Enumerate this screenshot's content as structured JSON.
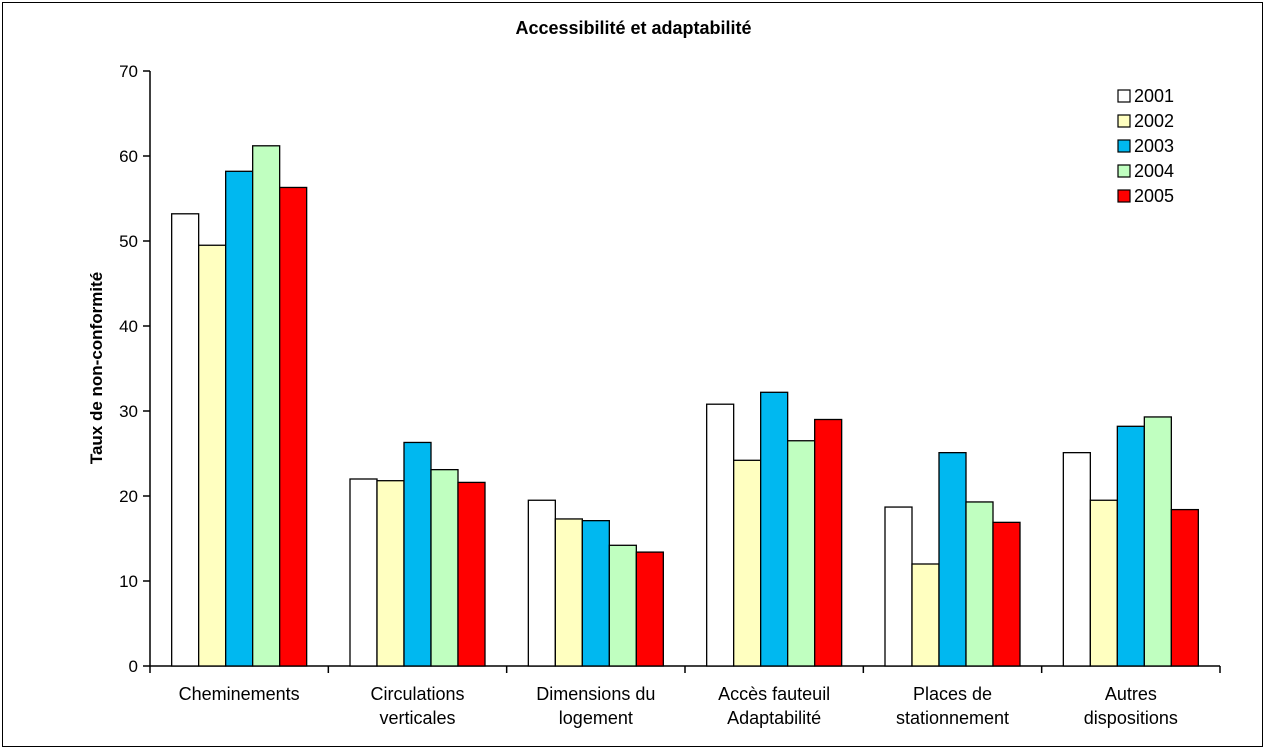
{
  "chart_data": {
    "type": "bar",
    "title": "Accessibilité et adaptabilité",
    "xlabel": "",
    "ylabel": "Taux de non-conformité",
    "ylim": [
      0,
      70
    ],
    "yticks": [
      "0",
      "10",
      "20",
      "30",
      "40",
      "50",
      "60",
      "70"
    ],
    "grid": false,
    "legend_position": "top-right",
    "categories": [
      [
        "Cheminements"
      ],
      [
        "Circulations",
        "verticales"
      ],
      [
        "Dimensions du",
        "logement"
      ],
      [
        "Accès fauteuil",
        "Adaptabilité"
      ],
      [
        "Places de",
        "stationnement"
      ],
      [
        "Autres",
        "dispositions"
      ]
    ],
    "series": [
      {
        "name": "2001",
        "color": "#ffffff",
        "values": [
          53.2,
          22,
          19.5,
          30.8,
          18.7,
          25.1
        ]
      },
      {
        "name": "2002",
        "color": "#ffffc0",
        "values": [
          49.5,
          21.8,
          17.3,
          24.2,
          12,
          19.5
        ]
      },
      {
        "name": "2003",
        "color": "#00b8f0",
        "values": [
          58.2,
          26.3,
          17.1,
          32.2,
          25.1,
          28.2
        ]
      },
      {
        "name": "2004",
        "color": "#c0ffc0",
        "values": [
          61.2,
          23.1,
          14.2,
          26.5,
          19.3,
          29.3
        ]
      },
      {
        "name": "2005",
        "color": "#ff0000",
        "values": [
          56.3,
          21.6,
          13.4,
          29,
          16.9,
          18.4
        ]
      }
    ]
  }
}
